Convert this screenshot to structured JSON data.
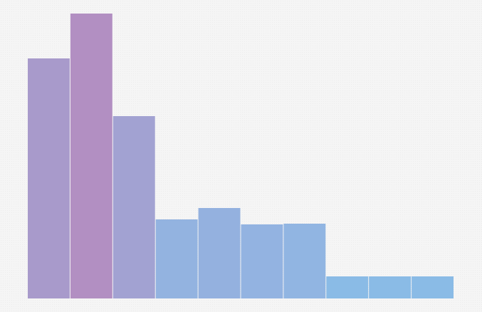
{
  "chart_data": {
    "type": "bar",
    "categories": [
      "",
      "",
      "",
      "",
      "",
      "",
      "",
      "",
      "",
      ""
    ],
    "values": [
      337,
      400,
      256,
      111,
      127,
      104,
      105,
      31,
      31,
      31
    ],
    "ylim": [
      0,
      400
    ],
    "grid": false,
    "legend": "none",
    "colors": [
      "#a89acb",
      "#b28fc2",
      "#a2a2d2",
      "#93b3e0",
      "#94b1df",
      "#93b3e1",
      "#91b5e2",
      "#8abbe6",
      "#8abbe6",
      "#8abbe6"
    ]
  }
}
